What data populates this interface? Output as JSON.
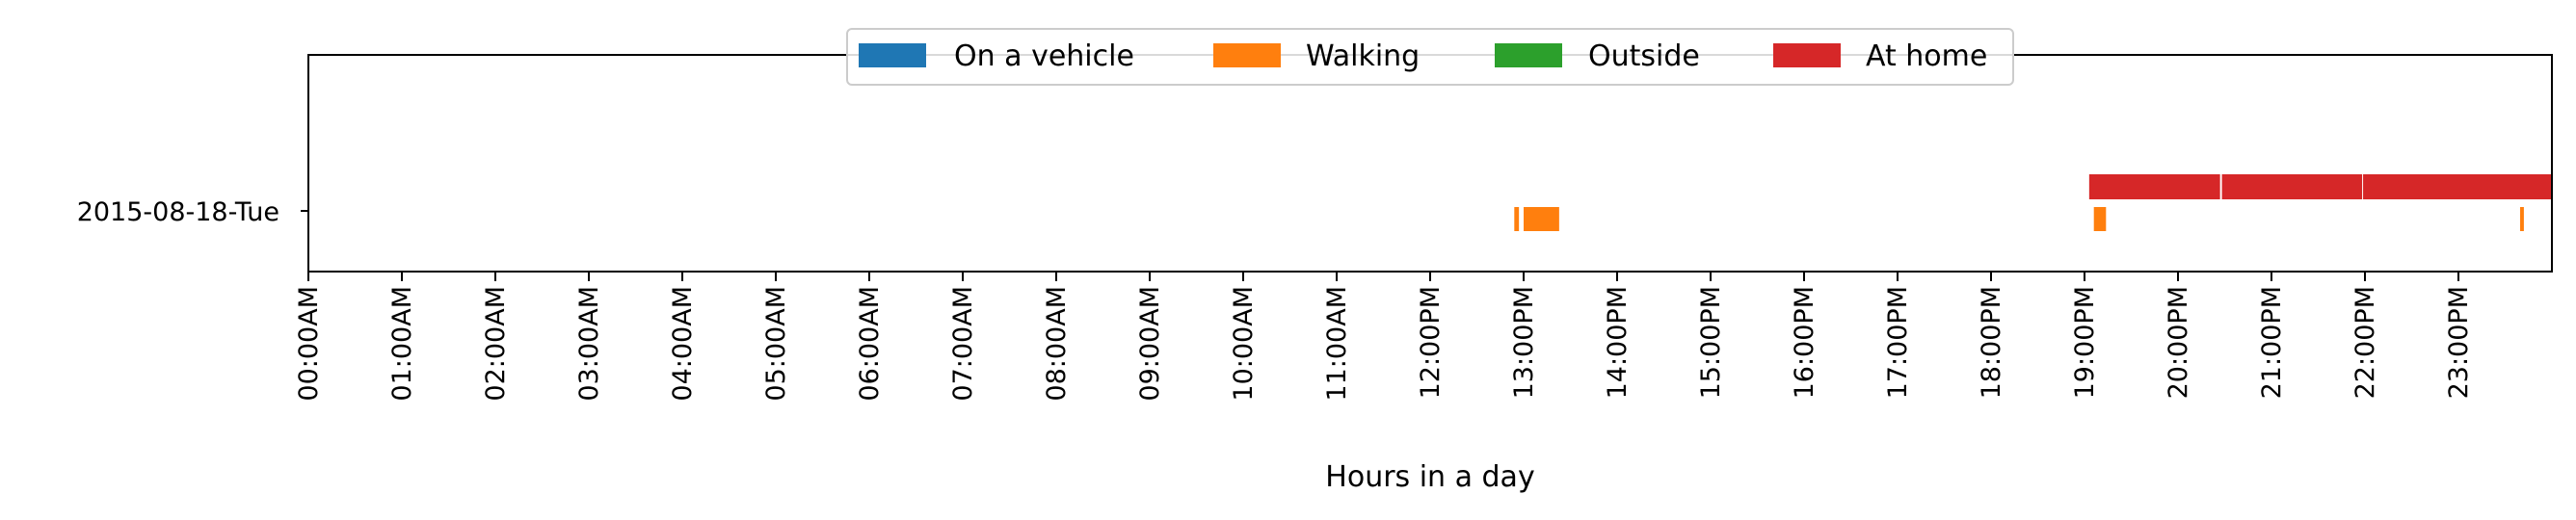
{
  "chart_data": {
    "type": "timeline",
    "xlabel": "Hours in a day",
    "ylabel": "",
    "xlim": [
      0,
      24
    ],
    "x_ticks": [
      "00:00AM",
      "01:00AM",
      "02:00AM",
      "03:00AM",
      "04:00AM",
      "05:00AM",
      "06:00AM",
      "07:00AM",
      "08:00AM",
      "09:00AM",
      "10:00AM",
      "11:00AM",
      "12:00PM",
      "13:00PM",
      "14:00PM",
      "15:00PM",
      "16:00PM",
      "17:00PM",
      "18:00PM",
      "19:00PM",
      "20:00PM",
      "21:00PM",
      "22:00PM",
      "23:00PM"
    ],
    "categories": [
      "2015-08-18-Tue"
    ],
    "legend_position": "top-center",
    "grid": false,
    "series": [
      {
        "name": "On a vehicle",
        "color": "#1f77b4",
        "intervals": []
      },
      {
        "name": "Walking",
        "color": "#ff7f0e",
        "intervals": [
          [
            12.9,
            12.95
          ],
          [
            13.0,
            13.38
          ],
          [
            19.1,
            19.23
          ],
          [
            23.66,
            23.7
          ]
        ]
      },
      {
        "name": "Outside",
        "color": "#2ca02c",
        "intervals": []
      },
      {
        "name": "At home",
        "color": "#d62728",
        "intervals": [
          [
            19.05,
            20.45
          ],
          [
            20.47,
            21.97
          ],
          [
            21.98,
            24.0
          ]
        ]
      }
    ]
  }
}
